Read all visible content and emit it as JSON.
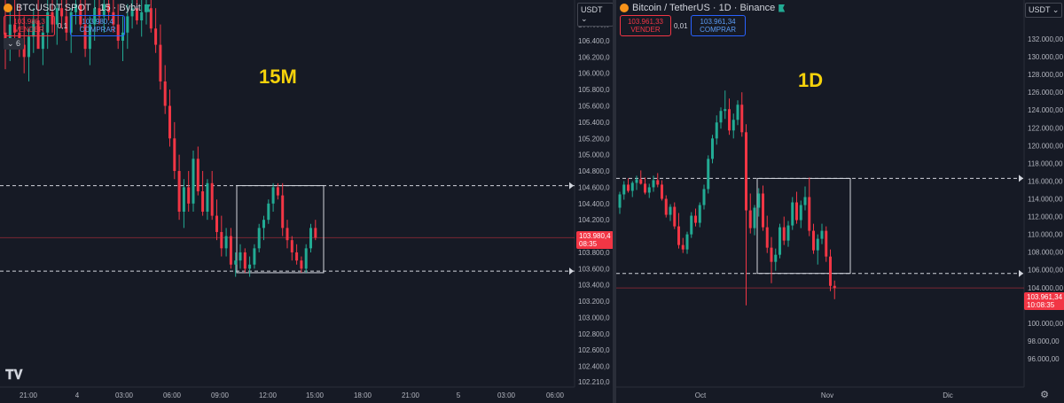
{
  "left": {
    "symbol": "BTCUSDT SPOT · 15 · Bybit",
    "sell_price": "103.980,3",
    "sell_label": "VENDER",
    "spread": "0,1",
    "buy_price": "103.980,4",
    "buy_label": "COMPRAR",
    "collapse_label": "6",
    "currency": "USDT",
    "timeframe_label": "15M",
    "price_tag": "103.980,4",
    "countdown": "08:35"
  },
  "right": {
    "symbol": "Bitcoin / TetherUS · 1D · Binance",
    "sell_price": "103.961,33",
    "sell_label": "VENDER",
    "spread": "0,01",
    "buy_price": "103.961,34",
    "buy_label": "COMPRAR",
    "currency": "USDT",
    "timeframe_label": "1D",
    "price_tag": "103.961,34",
    "countdown": "10:08:35"
  },
  "colors": {
    "up": "#22ab94",
    "down": "#f23645",
    "accent": "#f5d20b"
  },
  "icons": [
    "bitcoin-coin-icon",
    "status-flag-icon",
    "tradingview-logo-icon",
    "settings-gear-icon"
  ],
  "chart_data": [
    {
      "type": "candlestick",
      "title": "BTCUSDT SPOT · 15 · Bybit",
      "ylim": [
        102200,
        106650
      ],
      "y_ticks": [
        "106.600,0",
        "106.400,0",
        "106.200,0",
        "106.000,0",
        "105.800,0",
        "105.600,0",
        "105.400,0",
        "105.200,0",
        "105.000,0",
        "104.800,0",
        "104.600,0",
        "104.400,0",
        "104.200,0",
        "104.000,0",
        "103.800,0",
        "103.600,0",
        "103.400,0",
        "103.200,0",
        "103.000,0",
        "102.800,0",
        "102.600,0",
        "102.400,0",
        "102.210,0"
      ],
      "x_ticks": [
        "21:00",
        "4",
        "03:00",
        "06:00",
        "09:00",
        "12:00",
        "15:00",
        "18:00",
        "21:00",
        "5",
        "03:00",
        "06:00"
      ],
      "last_price": 103980.4,
      "horizontal_lines": [
        104620,
        103570
      ],
      "range_box": {
        "price_top": 104620,
        "price_bottom": 103550
      },
      "candles_ohlc": [
        [
          106500,
          106900,
          106050,
          106400
        ],
        [
          106400,
          106800,
          106150,
          106600
        ],
        [
          106600,
          106950,
          106300,
          106500
        ],
        [
          106500,
          106850,
          106200,
          106350
        ],
        [
          106350,
          106700,
          106000,
          106200
        ],
        [
          106200,
          106550,
          105900,
          106450
        ],
        [
          106450,
          106800,
          106250,
          106650
        ],
        [
          106650,
          106950,
          106400,
          106300
        ],
        [
          106300,
          106600,
          106100,
          106500
        ],
        [
          106500,
          106900,
          106300,
          106750
        ],
        [
          106750,
          106980,
          106500,
          106600
        ],
        [
          106600,
          106950,
          106350,
          106800
        ],
        [
          106800,
          106990,
          106550,
          106700
        ],
        [
          106700,
          106950,
          106400,
          106500
        ],
        [
          106500,
          106800,
          106250,
          106750
        ],
        [
          106750,
          106990,
          106600,
          106850
        ],
        [
          106850,
          106990,
          106550,
          106600
        ],
        [
          106600,
          106900,
          106200,
          106300
        ],
        [
          106300,
          106700,
          106100,
          106600
        ],
        [
          106600,
          106950,
          106400,
          106800
        ],
        [
          106800,
          106990,
          106600,
          106700
        ],
        [
          106700,
          106950,
          106500,
          106850
        ],
        [
          106850,
          106990,
          106650,
          106750
        ],
        [
          106750,
          106990,
          106500,
          106600
        ],
        [
          106600,
          106850,
          106300,
          106400
        ],
        [
          106400,
          106700,
          106150,
          106500
        ],
        [
          106500,
          106850,
          106300,
          106700
        ],
        [
          106700,
          106990,
          106550,
          106800
        ],
        [
          106800,
          106990,
          106600,
          106650
        ],
        [
          106650,
          106900,
          106450,
          106750
        ],
        [
          106750,
          106990,
          106600,
          106800
        ],
        [
          106800,
          106990,
          106500,
          106550
        ],
        [
          106550,
          106800,
          106250,
          106350
        ],
        [
          106350,
          106600,
          105800,
          105900
        ],
        [
          105900,
          106100,
          105500,
          105600
        ],
        [
          105600,
          105800,
          105100,
          105200
        ],
        [
          105200,
          105400,
          104700,
          104800
        ],
        [
          104800,
          105000,
          104200,
          104300
        ],
        [
          104300,
          104700,
          104100,
          104600
        ],
        [
          104600,
          104800,
          104300,
          104400
        ],
        [
          104400,
          105050,
          104300,
          104950
        ],
        [
          104950,
          105100,
          104500,
          104550
        ],
        [
          104550,
          104800,
          104250,
          104300
        ],
        [
          104300,
          104700,
          104200,
          104650
        ],
        [
          104650,
          104800,
          104200,
          104250
        ],
        [
          104250,
          104450,
          103950,
          104050
        ],
        [
          104050,
          104250,
          103750,
          103850
        ],
        [
          103850,
          104100,
          103750,
          104000
        ],
        [
          104000,
          104100,
          103600,
          103650
        ],
        [
          103650,
          103800,
          103500,
          103700
        ],
        [
          103700,
          103900,
          103600,
          103800
        ],
        [
          103800,
          103850,
          103550,
          103600
        ],
        [
          103600,
          103750,
          103500,
          103650
        ],
        [
          103650,
          103900,
          103600,
          103850
        ],
        [
          103850,
          104150,
          103800,
          104100
        ],
        [
          104100,
          104250,
          103950,
          104200
        ],
        [
          104200,
          104450,
          104150,
          104400
        ],
        [
          104400,
          104650,
          104300,
          104600
        ],
        [
          104600,
          104650,
          104450,
          104500
        ],
        [
          104500,
          104650,
          104000,
          104100
        ],
        [
          104100,
          104200,
          103850,
          103950
        ],
        [
          103950,
          104000,
          103700,
          103800
        ],
        [
          103800,
          103900,
          103650,
          103700
        ],
        [
          103700,
          103750,
          103550,
          103600
        ],
        [
          103600,
          103900,
          103550,
          103850
        ],
        [
          103850,
          104150,
          103800,
          104100
        ],
        [
          104100,
          104200,
          103950,
          103980
        ]
      ]
    },
    {
      "type": "candlestick",
      "title": "Bitcoin / TetherUS · 1D · Binance",
      "ylim": [
        94200,
        133400
      ],
      "y_ticks": [
        "132.000,00",
        "130.000,00",
        "128.000,00",
        "126.000,00",
        "124.000,00",
        "122.000,00",
        "120.000,00",
        "118.000,00",
        "116.000,00",
        "114.000,00",
        "112.000,00",
        "110.000,00",
        "108.000,00",
        "106.000,00",
        "104.000,00",
        "102.000,00",
        "100.000,00",
        "98.000,00",
        "96.000,00"
      ],
      "x_ticks": [
        "Oct",
        "Nov",
        "Dic"
      ],
      "last_price": 103961.34,
      "horizontal_lines": [
        116300,
        105600
      ],
      "range_box": {
        "price_top": 116300,
        "price_bottom": 105600
      },
      "candles_ohlc": [
        [
          113000,
          114800,
          112300,
          114500
        ],
        [
          114500,
          116000,
          113900,
          115600
        ],
        [
          115600,
          116300,
          114700,
          114900
        ],
        [
          114900,
          116000,
          114200,
          115800
        ],
        [
          115800,
          116600,
          115000,
          116200
        ],
        [
          116200,
          117200,
          115600,
          115700
        ],
        [
          115700,
          116400,
          114500,
          114700
        ],
        [
          114700,
          115700,
          114100,
          115300
        ],
        [
          115300,
          116600,
          114800,
          116100
        ],
        [
          116100,
          116900,
          115300,
          115600
        ],
        [
          115600,
          116100,
          113800,
          114000
        ],
        [
          114000,
          114400,
          111900,
          112200
        ],
        [
          112200,
          113400,
          111500,
          113100
        ],
        [
          113100,
          113600,
          110600,
          110900
        ],
        [
          110900,
          112400,
          108400,
          108800
        ],
        [
          108800,
          109600,
          107900,
          108300
        ],
        [
          108300,
          110300,
          107800,
          110000
        ],
        [
          110000,
          112500,
          109600,
          112100
        ],
        [
          112100,
          112900,
          110900,
          111300
        ],
        [
          111300,
          113600,
          110800,
          113300
        ],
        [
          113300,
          115600,
          112800,
          115100
        ],
        [
          115100,
          118900,
          114600,
          118500
        ],
        [
          118500,
          121200,
          118000,
          120800
        ],
        [
          120800,
          123400,
          120100,
          122600
        ],
        [
          122600,
          124300,
          121900,
          123900
        ],
        [
          123900,
          126200,
          123000,
          124100
        ],
        [
          124100,
          125300,
          121200,
          121700
        ],
        [
          121700,
          123600,
          120800,
          122900
        ],
        [
          122900,
          125100,
          122300,
          124600
        ],
        [
          124600,
          126000,
          121000,
          121500
        ],
        [
          121500,
          122400,
          102000,
          112700
        ],
        [
          112700,
          114600,
          110100,
          110700
        ],
        [
          110700,
          113300,
          109900,
          113000
        ],
        [
          113000,
          115200,
          112000,
          114600
        ],
        [
          114600,
          115500,
          110400,
          110800
        ],
        [
          110800,
          112100,
          107900,
          108500
        ],
        [
          108500,
          109700,
          104500,
          106900
        ],
        [
          106900,
          108400,
          105900,
          107700
        ],
        [
          107700,
          111200,
          107300,
          110800
        ],
        [
          110800,
          112000,
          108800,
          109300
        ],
        [
          109300,
          111500,
          108600,
          111000
        ],
        [
          111000,
          114200,
          110500,
          113600
        ],
        [
          113600,
          114800,
          111200,
          111600
        ],
        [
          111600,
          113800,
          110700,
          113300
        ],
        [
          113300,
          115400,
          112700,
          114200
        ],
        [
          114200,
          116400,
          109800,
          110400
        ],
        [
          110400,
          111200,
          107800,
          108200
        ],
        [
          108200,
          110000,
          106600,
          109500
        ],
        [
          109500,
          111200,
          108900,
          110400
        ],
        [
          110400,
          110900,
          106900,
          107500
        ],
        [
          107500,
          108300,
          103600,
          104200
        ],
        [
          104200,
          104800,
          102700,
          103961
        ]
      ]
    }
  ]
}
